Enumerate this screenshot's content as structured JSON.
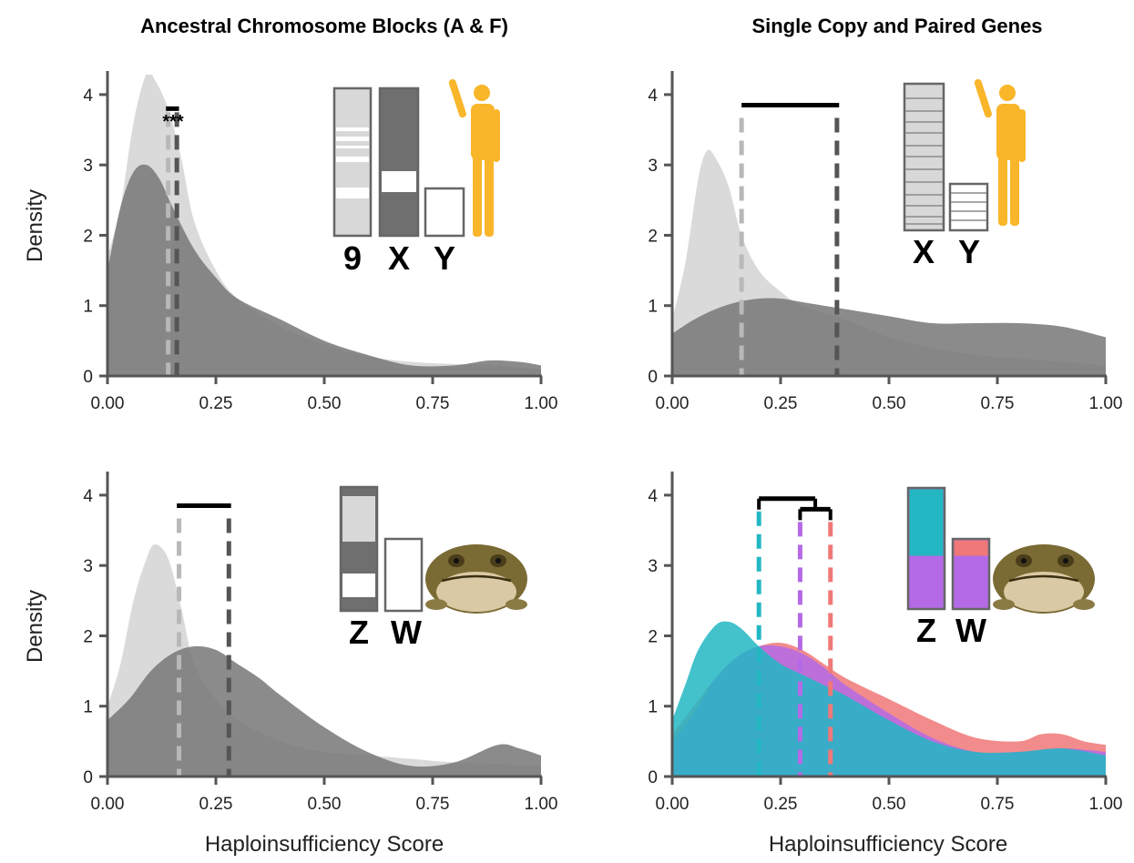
{
  "titles": [
    "Ancestral Chromosome Blocks (A & F)",
    "Single Copy and Paired Genes"
  ],
  "xlabel": "Haploinsufficiency Score",
  "ylabel": "Density",
  "colors": {
    "light": "#d4d4d4",
    "dark": "#777777",
    "teal": "#22b7c3",
    "purple": "#b46ae6",
    "salmon": "#f07878",
    "axis": "#555555",
    "human": "#f9b62a"
  },
  "chart_data": [
    {
      "type": "area",
      "title": "Ancestral Chromosome Blocks (A & F)",
      "xlabel": "",
      "ylabel": "Density",
      "xlim": [
        0,
        1
      ],
      "ylim": [
        0,
        4.4
      ],
      "xticks": [
        "0.00",
        "0.25",
        "0.50",
        "0.75",
        "1.00"
      ],
      "yticks": [
        "0",
        "1",
        "2",
        "3",
        "4"
      ],
      "organism": "human-icon",
      "chromosome_labels": [
        "9",
        "X",
        "Y"
      ],
      "series": [
        {
          "color": "#d4d4d4",
          "x": [
            0,
            0.03,
            0.06,
            0.09,
            0.11,
            0.14,
            0.17,
            0.2,
            0.25,
            0.3,
            0.4,
            0.5,
            0.6,
            0.7,
            0.8,
            0.9,
            1.0
          ],
          "y": [
            1.7,
            2.4,
            3.6,
            4.3,
            4.2,
            3.8,
            3.1,
            2.2,
            1.5,
            1.1,
            0.7,
            0.45,
            0.28,
            0.2,
            0.17,
            0.15,
            0.1
          ]
        },
        {
          "color": "#777777",
          "x": [
            0,
            0.03,
            0.06,
            0.09,
            0.12,
            0.15,
            0.2,
            0.25,
            0.3,
            0.4,
            0.5,
            0.6,
            0.7,
            0.8,
            0.88,
            0.95,
            1.0
          ],
          "y": [
            1.5,
            2.4,
            2.9,
            3.0,
            2.8,
            2.4,
            1.8,
            1.4,
            1.1,
            0.8,
            0.5,
            0.3,
            0.15,
            0.15,
            0.22,
            0.2,
            0.15
          ]
        }
      ],
      "vlines": [
        {
          "x": 0.14,
          "color": "#b8b8b8"
        },
        {
          "x": 0.16,
          "color": "#555555"
        }
      ],
      "brackets": [
        {
          "x1": 0.135,
          "x2": 0.165,
          "y": 3.8
        }
      ],
      "annotations": [
        "***"
      ]
    },
    {
      "type": "area",
      "title": "Single Copy and Paired Genes",
      "xlabel": "",
      "ylabel": "",
      "xlim": [
        0,
        1
      ],
      "ylim": [
        0,
        4.4
      ],
      "xticks": [
        "0.00",
        "0.25",
        "0.50",
        "0.75",
        "1.00"
      ],
      "yticks": [
        "0",
        "1",
        "2",
        "3",
        "4"
      ],
      "organism": "human-icon",
      "chromosome_labels": [
        "X",
        "Y"
      ],
      "series": [
        {
          "color": "#d4d4d4",
          "x": [
            0,
            0.03,
            0.06,
            0.08,
            0.1,
            0.13,
            0.16,
            0.2,
            0.25,
            0.3,
            0.4,
            0.5,
            0.6,
            0.7,
            0.8,
            0.9,
            1.0
          ],
          "y": [
            0.8,
            1.6,
            2.8,
            3.2,
            3.1,
            2.7,
            2.0,
            1.5,
            1.2,
            1.0,
            0.8,
            0.55,
            0.4,
            0.3,
            0.25,
            0.2,
            0.15
          ]
        },
        {
          "color": "#777777",
          "x": [
            0,
            0.05,
            0.1,
            0.15,
            0.2,
            0.25,
            0.3,
            0.4,
            0.5,
            0.6,
            0.7,
            0.8,
            0.9,
            1.0
          ],
          "y": [
            0.6,
            0.8,
            0.95,
            1.05,
            1.1,
            1.1,
            1.05,
            0.95,
            0.85,
            0.75,
            0.75,
            0.75,
            0.7,
            0.55
          ]
        }
      ],
      "vlines": [
        {
          "x": 0.16,
          "color": "#b8b8b8"
        },
        {
          "x": 0.38,
          "color": "#555555"
        }
      ],
      "brackets": [
        {
          "x1": 0.16,
          "x2": 0.385,
          "y": 3.85
        }
      ]
    },
    {
      "type": "area",
      "title": "",
      "xlabel": "Haploinsufficiency Score",
      "ylabel": "Density",
      "xlim": [
        0,
        1
      ],
      "ylim": [
        0,
        4.4
      ],
      "xticks": [
        "0.00",
        "0.25",
        "0.50",
        "0.75",
        "1.00"
      ],
      "yticks": [
        "0",
        "1",
        "2",
        "3",
        "4"
      ],
      "organism": "frog-icon",
      "chromosome_labels": [
        "Z",
        "W"
      ],
      "series": [
        {
          "color": "#d4d4d4",
          "x": [
            0,
            0.03,
            0.06,
            0.09,
            0.11,
            0.14,
            0.17,
            0.2,
            0.25,
            0.3,
            0.4,
            0.5,
            0.6,
            0.7,
            0.8,
            0.9,
            1.0
          ],
          "y": [
            1.0,
            1.6,
            2.5,
            3.1,
            3.3,
            3.1,
            2.4,
            1.6,
            1.1,
            0.8,
            0.5,
            0.35,
            0.3,
            0.25,
            0.2,
            0.18,
            0.15
          ]
        },
        {
          "color": "#777777",
          "x": [
            0,
            0.05,
            0.1,
            0.15,
            0.2,
            0.25,
            0.3,
            0.35,
            0.4,
            0.5,
            0.6,
            0.7,
            0.8,
            0.9,
            0.95,
            1.0
          ],
          "y": [
            0.8,
            1.1,
            1.5,
            1.75,
            1.85,
            1.8,
            1.6,
            1.4,
            1.15,
            0.7,
            0.35,
            0.15,
            0.2,
            0.45,
            0.4,
            0.3
          ]
        }
      ],
      "vlines": [
        {
          "x": 0.165,
          "color": "#b8b8b8"
        },
        {
          "x": 0.28,
          "color": "#555555"
        }
      ],
      "brackets": [
        {
          "x1": 0.16,
          "x2": 0.285,
          "y": 3.85
        }
      ]
    },
    {
      "type": "area",
      "title": "",
      "xlabel": "Haploinsufficiency Score",
      "ylabel": "",
      "xlim": [
        0,
        1
      ],
      "ylim": [
        0,
        4.4
      ],
      "xticks": [
        "0.00",
        "0.25",
        "0.50",
        "0.75",
        "1.00"
      ],
      "yticks": [
        "0",
        "1",
        "2",
        "3",
        "4"
      ],
      "organism": "frog-icon",
      "chromosome_labels": [
        "Z",
        "W"
      ],
      "series": [
        {
          "color": "#f07878",
          "x": [
            0,
            0.05,
            0.1,
            0.15,
            0.2,
            0.25,
            0.3,
            0.35,
            0.4,
            0.5,
            0.6,
            0.7,
            0.8,
            0.85,
            0.9,
            0.95,
            1.0
          ],
          "y": [
            0.6,
            1.0,
            1.4,
            1.7,
            1.85,
            1.9,
            1.8,
            1.6,
            1.4,
            1.1,
            0.8,
            0.55,
            0.5,
            0.6,
            0.6,
            0.5,
            0.45
          ]
        },
        {
          "color": "#b46ae6",
          "x": [
            0,
            0.05,
            0.1,
            0.15,
            0.2,
            0.25,
            0.3,
            0.35,
            0.4,
            0.5,
            0.6,
            0.7,
            0.8,
            0.9,
            1.0
          ],
          "y": [
            0.5,
            0.9,
            1.4,
            1.7,
            1.85,
            1.85,
            1.75,
            1.55,
            1.3,
            0.9,
            0.55,
            0.35,
            0.35,
            0.4,
            0.35
          ]
        },
        {
          "color": "#22b7c3",
          "x": [
            0,
            0.03,
            0.06,
            0.1,
            0.13,
            0.16,
            0.2,
            0.25,
            0.3,
            0.35,
            0.4,
            0.5,
            0.6,
            0.7,
            0.8,
            0.9,
            1.0
          ],
          "y": [
            0.8,
            1.3,
            1.8,
            2.15,
            2.2,
            2.1,
            1.85,
            1.6,
            1.45,
            1.3,
            1.15,
            0.8,
            0.5,
            0.35,
            0.35,
            0.4,
            0.3
          ]
        }
      ],
      "vlines": [
        {
          "x": 0.2,
          "color": "#22b7c3"
        },
        {
          "x": 0.295,
          "color": "#b46ae6"
        },
        {
          "x": 0.365,
          "color": "#f07878"
        }
      ],
      "brackets": [
        {
          "x1": 0.2,
          "x2": 0.33,
          "y": 3.95
        },
        {
          "x1": 0.295,
          "x2": 0.365,
          "y": 3.8
        }
      ]
    }
  ]
}
